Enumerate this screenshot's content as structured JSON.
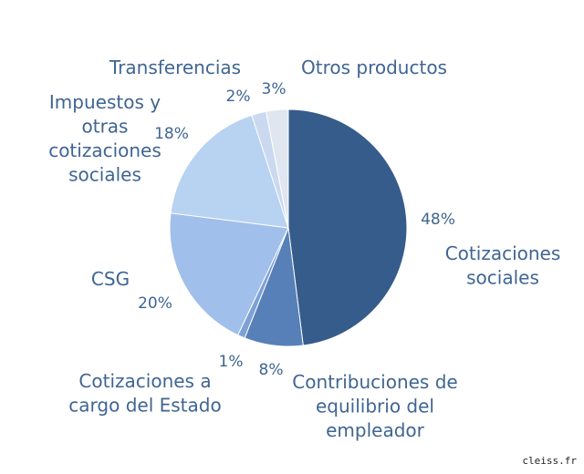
{
  "chart_data": {
    "type": "pie",
    "start": "top",
    "direction": "clockwise",
    "slices": [
      {
        "label": [
          "Cotizaciones",
          "sociales"
        ],
        "value": 48,
        "pct": "48%",
        "color": "#365c8c"
      },
      {
        "label": [
          "Contribuciones de",
          "equilibrio del",
          "empleador"
        ],
        "value": 8,
        "pct": "8%",
        "color": "#5780b8"
      },
      {
        "label": [
          "Cotizaciones a",
          "cargo del Estado"
        ],
        "value": 1,
        "pct": "1%",
        "color": "#7da1d6"
      },
      {
        "label": [
          "CSG"
        ],
        "value": 20,
        "pct": "20%",
        "color": "#a0bfea"
      },
      {
        "label": [
          "Impuestos y",
          "otras",
          "cotizaciones",
          "sociales"
        ],
        "value": 18,
        "pct": "18%",
        "color": "#b8d2f1"
      },
      {
        "label": [
          "Transferencias"
        ],
        "value": 2,
        "pct": "2%",
        "color": "#cad9f0"
      },
      {
        "label": [
          "Otros productos"
        ],
        "value": 3,
        "pct": "3%",
        "color": "#dfe6f0"
      }
    ]
  },
  "watermark": "cleiss.fr"
}
